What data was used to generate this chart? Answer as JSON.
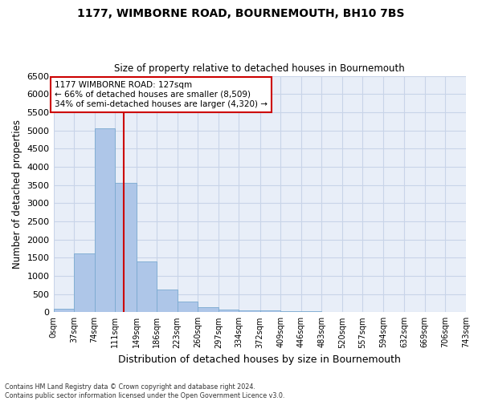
{
  "title1": "1177, WIMBORNE ROAD, BOURNEMOUTH, BH10 7BS",
  "title2": "Size of property relative to detached houses in Bournemouth",
  "xlabel": "Distribution of detached houses by size in Bournemouth",
  "ylabel": "Number of detached properties",
  "bin_edges": [
    0,
    37,
    74,
    111,
    149,
    186,
    223,
    260,
    297,
    334,
    372,
    409,
    446,
    483,
    520,
    557,
    594,
    632,
    669,
    706,
    743
  ],
  "bin_labels": [
    "0sqm",
    "37sqm",
    "74sqm",
    "111sqm",
    "149sqm",
    "186sqm",
    "223sqm",
    "260sqm",
    "297sqm",
    "334sqm",
    "372sqm",
    "409sqm",
    "446sqm",
    "483sqm",
    "520sqm",
    "557sqm",
    "594sqm",
    "632sqm",
    "669sqm",
    "706sqm",
    "743sqm"
  ],
  "bar_heights": [
    100,
    1620,
    5060,
    3560,
    1400,
    620,
    300,
    130,
    80,
    50,
    50,
    30,
    20,
    10,
    5,
    5,
    5,
    5,
    5,
    5
  ],
  "bar_color": "#aec6e8",
  "bar_edge_color": "#7aaad0",
  "property_size": 127,
  "vline_color": "#cc0000",
  "annotation_text": "1177 WIMBORNE ROAD: 127sqm\n← 66% of detached houses are smaller (8,509)\n34% of semi-detached houses are larger (4,320) →",
  "annotation_box_color": "white",
  "annotation_box_edge": "#cc0000",
  "ylim": [
    0,
    6500
  ],
  "yticks": [
    0,
    500,
    1000,
    1500,
    2000,
    2500,
    3000,
    3500,
    4000,
    4500,
    5000,
    5500,
    6000,
    6500
  ],
  "grid_color": "#c8d4e8",
  "bg_color": "#e8eef8",
  "footnote1": "Contains HM Land Registry data © Crown copyright and database right 2024.",
  "footnote2": "Contains public sector information licensed under the Open Government Licence v3.0."
}
